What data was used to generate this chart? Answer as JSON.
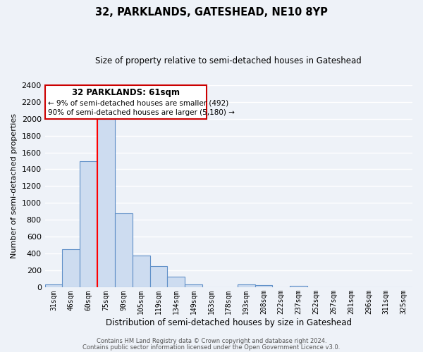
{
  "title": "32, PARKLANDS, GATESHEAD, NE10 8YP",
  "subtitle": "Size of property relative to semi-detached houses in Gateshead",
  "xlabel": "Distribution of semi-detached houses by size in Gateshead",
  "ylabel": "Number of semi-detached properties",
  "categories": [
    "31sqm",
    "46sqm",
    "60sqm",
    "75sqm",
    "90sqm",
    "105sqm",
    "119sqm",
    "134sqm",
    "149sqm",
    "163sqm",
    "178sqm",
    "193sqm",
    "208sqm",
    "222sqm",
    "237sqm",
    "252sqm",
    "267sqm",
    "281sqm",
    "296sqm",
    "311sqm",
    "325sqm"
  ],
  "values": [
    40,
    450,
    1500,
    2000,
    880,
    375,
    255,
    130,
    35,
    0,
    0,
    35,
    30,
    0,
    18,
    0,
    0,
    0,
    0,
    0,
    0
  ],
  "bar_color_fill": "#cddcf0",
  "bar_color_edge": "#6090c8",
  "ylim": [
    0,
    2400
  ],
  "yticks": [
    0,
    200,
    400,
    600,
    800,
    1000,
    1200,
    1400,
    1600,
    1800,
    2000,
    2200,
    2400
  ],
  "red_line_index": 3,
  "red_line_label": "32 PARKLANDS: 61sqm",
  "annotation_line1": "← 9% of semi-detached houses are smaller (492)",
  "annotation_line2": "90% of semi-detached houses are larger (5,180) →",
  "annotation_box_color": "#ffffff",
  "annotation_box_edge": "#cc0000",
  "footer1": "Contains HM Land Registry data © Crown copyright and database right 2024.",
  "footer2": "Contains public sector information licensed under the Open Government Licence v3.0.",
  "bg_color": "#eef2f8",
  "grid_color": "#dce6f0"
}
